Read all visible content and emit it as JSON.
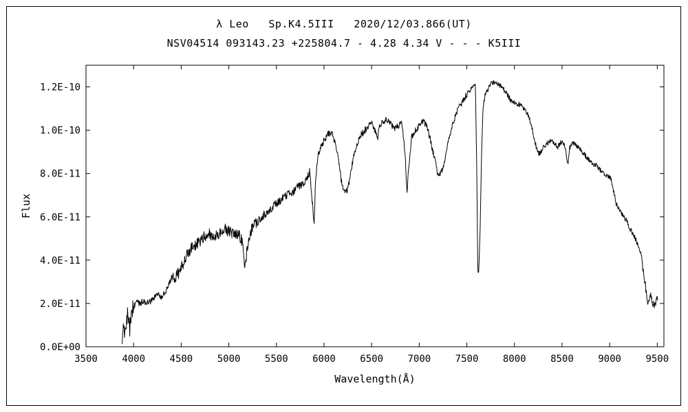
{
  "chart_data": {
    "type": "line",
    "title": "λ Leo   Sp.K4.5III   2020/12/03.866(UT)",
    "subtitle": "NSV04514 093143.23 +225804.7 - 4.28 4.34 V - - - K5III",
    "xlabel": "Wavelength(Å)",
    "ylabel": "Flux",
    "xlim": [
      3500,
      9570
    ],
    "ylim_flux_1e-11": [
      0,
      13
    ],
    "x_ticks": [
      3500,
      4000,
      4500,
      5000,
      5500,
      6000,
      6500,
      7000,
      7500,
      8000,
      8500,
      9000,
      9500
    ],
    "y_ticks_flux_1e-11": [
      0,
      2,
      4,
      6,
      8,
      10,
      12
    ],
    "y_tick_labels": [
      "0.0E+00",
      "2.0E-11",
      "4.0E-11",
      "6.0E-11",
      "8.0E-11",
      "1.0E-10",
      "1.2E-10"
    ],
    "grid": false,
    "legend": "none",
    "line_color": "#000000",
    "background_color": "#ffffff",
    "flux_unit": "1e-11 (relative flux per 2.0E-11 axis steps, top tick 1.2E-10)",
    "series_name": "lambda Leo spectrum",
    "noise_note": "high-frequency noise overlaid on envelope; deep telluric O2 A-band at 7620, O2 B-band at 6870, Na D at 5890, Mg b at 5170, H2O bands at 7200 and 9350",
    "points": [
      [
        3880,
        0.2
      ],
      [
        3895,
        0.9
      ],
      [
        3905,
        0.2
      ],
      [
        3915,
        1.0
      ],
      [
        3930,
        1.3
      ],
      [
        3945,
        1.5
      ],
      [
        3960,
        0.9
      ],
      [
        3975,
        1.6
      ],
      [
        3990,
        1.8
      ],
      [
        4010,
        1.9
      ],
      [
        4030,
        2.1
      ],
      [
        4060,
        2.0
      ],
      [
        4100,
        2.1
      ],
      [
        4140,
        2.0
      ],
      [
        4180,
        2.1
      ],
      [
        4220,
        2.3
      ],
      [
        4260,
        2.4
      ],
      [
        4300,
        2.3
      ],
      [
        4340,
        2.6
      ],
      [
        4380,
        3.0
      ],
      [
        4420,
        3.2
      ],
      [
        4460,
        3.3
      ],
      [
        4500,
        3.6
      ],
      [
        4540,
        4.1
      ],
      [
        4570,
        4.3
      ],
      [
        4600,
        4.5
      ],
      [
        4640,
        4.7
      ],
      [
        4680,
        4.8
      ],
      [
        4720,
        5.0
      ],
      [
        4760,
        5.1
      ],
      [
        4800,
        5.2
      ],
      [
        4840,
        5.0
      ],
      [
        4860,
        5.1
      ],
      [
        4900,
        5.3
      ],
      [
        4940,
        5.4
      ],
      [
        4980,
        5.4
      ],
      [
        5020,
        5.3
      ],
      [
        5060,
        5.3
      ],
      [
        5100,
        5.2
      ],
      [
        5140,
        4.9
      ],
      [
        5160,
        4.0
      ],
      [
        5175,
        3.8
      ],
      [
        5190,
        4.4
      ],
      [
        5210,
        5.0
      ],
      [
        5250,
        5.5
      ],
      [
        5290,
        5.7
      ],
      [
        5330,
        5.9
      ],
      [
        5370,
        6.1
      ],
      [
        5410,
        6.2
      ],
      [
        5450,
        6.4
      ],
      [
        5490,
        6.6
      ],
      [
        5530,
        6.7
      ],
      [
        5570,
        6.9
      ],
      [
        5610,
        7.0
      ],
      [
        5650,
        7.1
      ],
      [
        5690,
        7.2
      ],
      [
        5730,
        7.4
      ],
      [
        5770,
        7.5
      ],
      [
        5810,
        7.7
      ],
      [
        5850,
        8.1
      ],
      [
        5880,
        6.6
      ],
      [
        5895,
        5.6
      ],
      [
        5910,
        7.5
      ],
      [
        5930,
        8.6
      ],
      [
        5960,
        9.2
      ],
      [
        6000,
        9.5
      ],
      [
        6040,
        9.8
      ],
      [
        6070,
        9.9
      ],
      [
        6100,
        9.7
      ],
      [
        6130,
        9.2
      ],
      [
        6160,
        8.4
      ],
      [
        6190,
        7.4
      ],
      [
        6220,
        7.1
      ],
      [
        6250,
        7.3
      ],
      [
        6280,
        8.0
      ],
      [
        6310,
        8.8
      ],
      [
        6350,
        9.4
      ],
      [
        6390,
        9.8
      ],
      [
        6430,
        10.0
      ],
      [
        6470,
        10.2
      ],
      [
        6510,
        10.3
      ],
      [
        6545,
        9.9
      ],
      [
        6562,
        9.6
      ],
      [
        6580,
        10.2
      ],
      [
        6620,
        10.4
      ],
      [
        6660,
        10.5
      ],
      [
        6700,
        10.3
      ],
      [
        6740,
        10.1
      ],
      [
        6780,
        10.2
      ],
      [
        6820,
        10.3
      ],
      [
        6850,
        9.0
      ],
      [
        6870,
        7.1
      ],
      [
        6890,
        8.3
      ],
      [
        6920,
        9.7
      ],
      [
        6960,
        10.0
      ],
      [
        7000,
        10.2
      ],
      [
        7040,
        10.4
      ],
      [
        7080,
        10.2
      ],
      [
        7120,
        9.5
      ],
      [
        7160,
        8.7
      ],
      [
        7200,
        7.9
      ],
      [
        7240,
        8.1
      ],
      [
        7280,
        8.9
      ],
      [
        7320,
        9.8
      ],
      [
        7360,
        10.4
      ],
      [
        7400,
        10.9
      ],
      [
        7440,
        11.2
      ],
      [
        7480,
        11.5
      ],
      [
        7520,
        11.8
      ],
      [
        7560,
        12.0
      ],
      [
        7590,
        12.1
      ],
      [
        7605,
        8.0
      ],
      [
        7615,
        3.5
      ],
      [
        7625,
        3.4
      ],
      [
        7640,
        5.5
      ],
      [
        7655,
        9.0
      ],
      [
        7670,
        11.0
      ],
      [
        7690,
        11.6
      ],
      [
        7720,
        11.9
      ],
      [
        7750,
        12.1
      ],
      [
        7780,
        12.2
      ],
      [
        7810,
        12.2
      ],
      [
        7840,
        12.1
      ],
      [
        7870,
        12.0
      ],
      [
        7900,
        11.8
      ],
      [
        7930,
        11.6
      ],
      [
        7960,
        11.4
      ],
      [
        8000,
        11.3
      ],
      [
        8040,
        11.2
      ],
      [
        8080,
        11.1
      ],
      [
        8120,
        10.9
      ],
      [
        8160,
        10.5
      ],
      [
        8200,
        9.8
      ],
      [
        8230,
        9.2
      ],
      [
        8260,
        8.9
      ],
      [
        8290,
        9.1
      ],
      [
        8320,
        9.3
      ],
      [
        8350,
        9.4
      ],
      [
        8390,
        9.5
      ],
      [
        8420,
        9.4
      ],
      [
        8450,
        9.2
      ],
      [
        8480,
        9.4
      ],
      [
        8510,
        9.5
      ],
      [
        8540,
        9.0
      ],
      [
        8560,
        8.4
      ],
      [
        8580,
        9.2
      ],
      [
        8610,
        9.4
      ],
      [
        8650,
        9.3
      ],
      [
        8690,
        9.1
      ],
      [
        8730,
        8.9
      ],
      [
        8770,
        8.7
      ],
      [
        8810,
        8.5
      ],
      [
        8850,
        8.4
      ],
      [
        8890,
        8.2
      ],
      [
        8930,
        8.0
      ],
      [
        8970,
        7.9
      ],
      [
        9010,
        7.8
      ],
      [
        9040,
        7.2
      ],
      [
        9070,
        6.6
      ],
      [
        9100,
        6.3
      ],
      [
        9140,
        6.1
      ],
      [
        9180,
        5.8
      ],
      [
        9220,
        5.4
      ],
      [
        9260,
        5.1
      ],
      [
        9300,
        4.7
      ],
      [
        9330,
        4.2
      ],
      [
        9360,
        3.3
      ],
      [
        9390,
        2.4
      ],
      [
        9410,
        1.9
      ],
      [
        9430,
        2.5
      ],
      [
        9450,
        2.0
      ],
      [
        9470,
        1.9
      ],
      [
        9490,
        2.1
      ],
      [
        9510,
        2.3
      ]
    ]
  }
}
